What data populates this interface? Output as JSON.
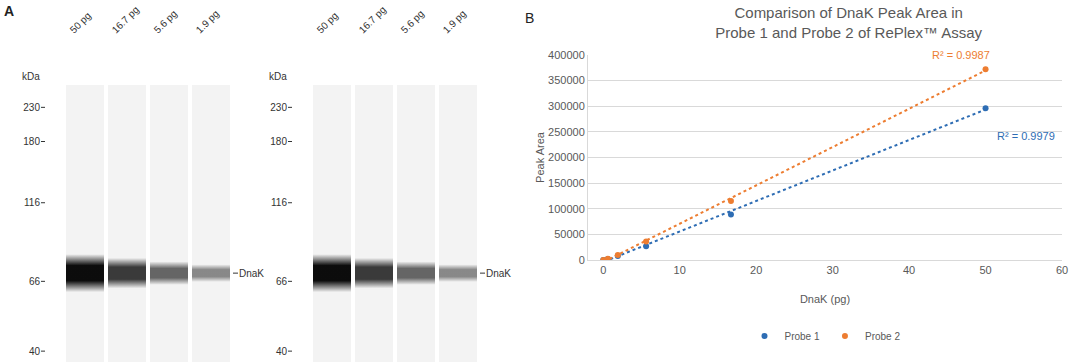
{
  "panel_a": {
    "panel_label": "A",
    "blots": [
      {
        "ladder_title": "kDa",
        "ladder": [
          230,
          180,
          116,
          66,
          40
        ],
        "ylim": [
          37,
          270
        ],
        "band_label": "DnaK",
        "band_kda": 70,
        "lanes": [
          {
            "label": "50 pg",
            "amount": 50
          },
          {
            "label": "16.7 pg",
            "amount": 16.7
          },
          {
            "label": "5.6 pg",
            "amount": 5.6
          },
          {
            "label": "1.9 pg",
            "amount": 1.9
          }
        ]
      },
      {
        "ladder_title": "kDa",
        "ladder": [
          230,
          180,
          116,
          66,
          40
        ],
        "ylim": [
          37,
          270
        ],
        "band_label": "DnaK",
        "band_kda": 70,
        "lanes": [
          {
            "label": "50 pg",
            "amount": 50
          },
          {
            "label": "16.7 pg",
            "amount": 16.7
          },
          {
            "label": "5.6 pg",
            "amount": 5.6
          },
          {
            "label": "1.9 pg",
            "amount": 1.9
          }
        ]
      }
    ]
  },
  "chart_data": {
    "type": "scatter",
    "title": [
      "Comparison of DnaK Peak Area in",
      "Probe 1 and Probe 2 of RePlex™ Assay"
    ],
    "x_label": "DnaK (pg)",
    "y_label": "Peak Area",
    "x": [
      0,
      0.6,
      1.9,
      5.6,
      16.7,
      50
    ],
    "series": [
      {
        "name": "Probe 1",
        "color": "#2e6db4",
        "marker": "circle",
        "line_style": "dot",
        "values": [
          0,
          2000,
          8000,
          27000,
          89000,
          296000
        ]
      },
      {
        "name": "Probe 2",
        "color": "#ed7d31",
        "marker": "circle",
        "line_style": "dot",
        "values": [
          0,
          2500,
          10000,
          36000,
          115000,
          372000
        ]
      }
    ],
    "annotations": [
      {
        "text": "B",
        "position": "top-left"
      },
      {
        "text": "R² = 0.9979",
        "series": "Probe 1"
      },
      {
        "text": "R² = 0.9987",
        "series": "Probe 2"
      }
    ],
    "xlim": [
      -2,
      60
    ],
    "xticks": [
      0,
      10,
      20,
      30,
      40,
      50,
      60
    ],
    "ylim": [
      0,
      400000
    ],
    "yticks": [
      0,
      50000,
      100000,
      150000,
      200000,
      250000,
      300000,
      350000,
      400000
    ],
    "grid": true,
    "legend": "bottom"
  }
}
